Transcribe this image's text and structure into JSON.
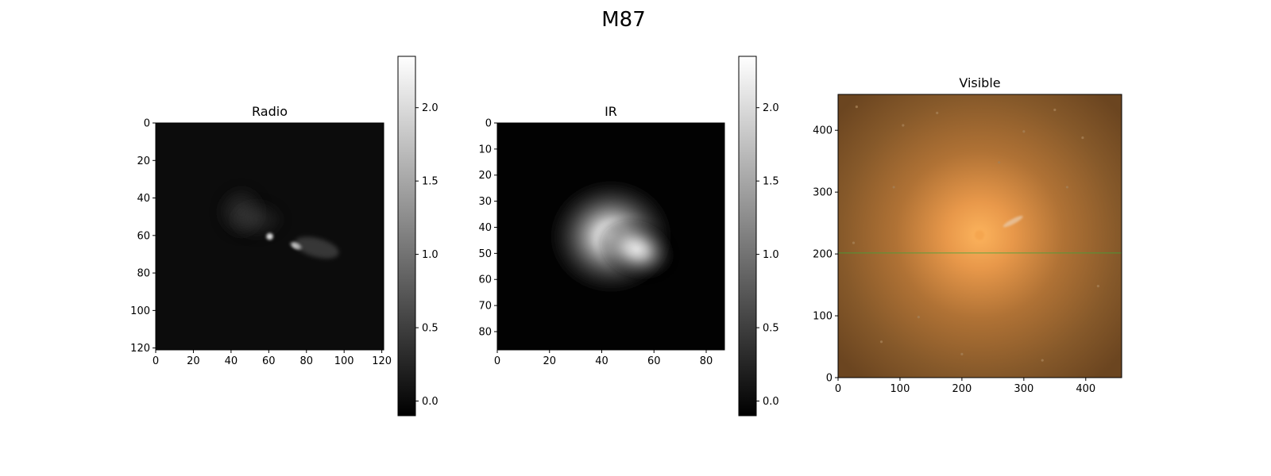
{
  "chart_data": {
    "title": "M87",
    "type": "heatmap",
    "panels": [
      {
        "title": "Radio",
        "type": "heatmap",
        "colormap": "gray",
        "image_size": [
          121,
          121
        ],
        "x_ticks": [
          0,
          20,
          40,
          60,
          80,
          100,
          120
        ],
        "y_ticks": [
          0,
          20,
          40,
          60,
          80,
          100,
          120
        ],
        "y_axis_origin": "top",
        "features": [
          {
            "kind": "hotspot",
            "x": 60,
            "y": 60,
            "brightness": 1.0
          },
          {
            "kind": "knot",
            "x": 74,
            "y": 65,
            "brightness": 0.85
          },
          {
            "kind": "jet",
            "x": 85,
            "y": 66,
            "brightness": 0.4
          },
          {
            "kind": "lobe",
            "x": 45,
            "y": 47,
            "brightness": 0.22
          }
        ],
        "colorbar": {
          "ticks": [
            0.0,
            0.5,
            1.0,
            1.5,
            2.0
          ],
          "range": [
            -0.1,
            2.35
          ]
        }
      },
      {
        "title": "IR",
        "type": "heatmap",
        "colormap": "gray",
        "image_size": [
          87,
          87
        ],
        "x_ticks": [
          0,
          20,
          40,
          60,
          80
        ],
        "y_ticks": [
          0,
          10,
          20,
          30,
          40,
          50,
          60,
          70,
          80
        ],
        "y_axis_origin": "top",
        "features": [
          {
            "kind": "core",
            "x": 43,
            "y": 43,
            "brightness": 1.0
          },
          {
            "kind": "extension",
            "x": 53,
            "y": 48,
            "brightness": 0.85
          }
        ],
        "colorbar": {
          "ticks": [
            0.0,
            0.5,
            1.0,
            1.5,
            2.0
          ],
          "range": [
            -0.1,
            2.35
          ]
        }
      },
      {
        "title": "Visible",
        "type": "heatmap",
        "colormap": "rgb",
        "image_size": [
          458,
          458
        ],
        "x_ticks": [
          0,
          100,
          200,
          300,
          400
        ],
        "y_ticks": [
          0,
          100,
          200,
          300,
          400
        ],
        "y_axis_origin": "bottom",
        "features": [
          {
            "kind": "core",
            "x": 228,
            "y": 230,
            "color": "#f5a650"
          },
          {
            "kind": "jet",
            "x": 282,
            "y": 252,
            "color": "#e8c9a8"
          },
          {
            "kind": "line",
            "y": 201,
            "color": "#3fa53a"
          }
        ],
        "background_color": "#6b4520"
      }
    ]
  }
}
